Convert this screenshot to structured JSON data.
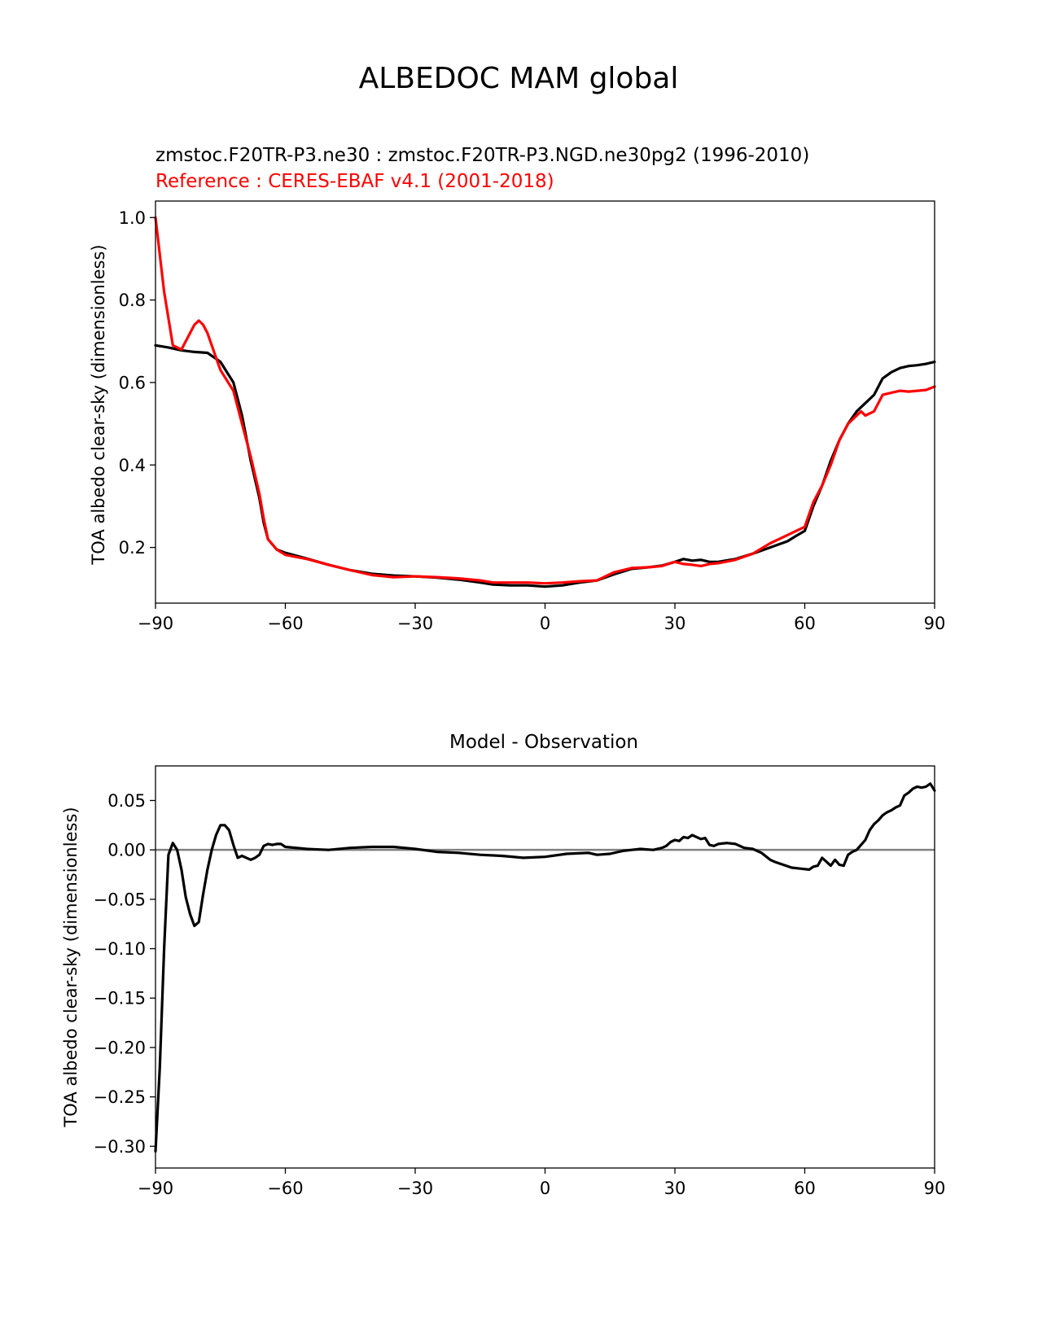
{
  "figure": {
    "suptitle": "ALBEDOC MAM global"
  },
  "colors": {
    "test": "#000000",
    "reference": "#ff0000",
    "zero_line": "#808080"
  },
  "chart_data": [
    {
      "type": "line",
      "title_test": "zmstoc.F20TR-P3.ne30 : zmstoc.F20TR-P3.NGD.ne30pg2 (1996-2010)",
      "title_reference": "Reference : CERES-EBAF v4.1 (2001-2018)",
      "xlabel": "",
      "ylabel": "TOA albedo clear-sky (dimensionless)",
      "xlim": [
        -90,
        90
      ],
      "ylim": [
        0.065,
        1.04
      ],
      "xticks": [
        -90,
        -60,
        -30,
        0,
        30,
        60,
        90
      ],
      "xtick_labels": [
        "−90",
        "−60",
        "−30",
        "0",
        "30",
        "60",
        "90"
      ],
      "yticks": [
        0.2,
        0.4,
        0.6,
        0.8,
        1.0
      ],
      "ytick_labels": [
        "0.2",
        "0.4",
        "0.6",
        "0.8",
        "1.0"
      ],
      "grid": false,
      "series": [
        {
          "color": "#000000",
          "x": [
            -90,
            -87,
            -84,
            -81,
            -78,
            -75,
            -72,
            -70,
            -68,
            -66,
            -65,
            -64,
            -62,
            -60,
            -55,
            -50,
            -45,
            -40,
            -35,
            -30,
            -25,
            -20,
            -15,
            -12,
            -8,
            -4,
            0,
            4,
            8,
            12,
            16,
            20,
            24,
            27,
            30,
            32,
            34,
            36,
            38,
            40,
            44,
            48,
            52,
            56,
            58,
            60,
            62,
            64,
            66,
            68,
            70,
            72,
            74,
            76,
            78,
            80,
            82,
            84,
            86,
            88,
            90
          ],
          "y": [
            0.69,
            0.685,
            0.678,
            0.674,
            0.672,
            0.65,
            0.6,
            0.52,
            0.41,
            0.32,
            0.26,
            0.22,
            0.195,
            0.187,
            0.173,
            0.158,
            0.145,
            0.136,
            0.132,
            0.13,
            0.127,
            0.122,
            0.115,
            0.11,
            0.108,
            0.108,
            0.105,
            0.108,
            0.115,
            0.12,
            0.135,
            0.148,
            0.152,
            0.156,
            0.165,
            0.172,
            0.168,
            0.17,
            0.165,
            0.165,
            0.172,
            0.185,
            0.2,
            0.215,
            0.228,
            0.24,
            0.3,
            0.35,
            0.41,
            0.46,
            0.5,
            0.53,
            0.55,
            0.57,
            0.61,
            0.625,
            0.635,
            0.64,
            0.642,
            0.645,
            0.65
          ]
        },
        {
          "color": "#ff0000",
          "x": [
            -90,
            -88,
            -86,
            -84,
            -82,
            -81,
            -80,
            -79,
            -78,
            -77,
            -76,
            -75,
            -72,
            -70,
            -68,
            -66,
            -65,
            -64,
            -62,
            -60,
            -55,
            -50,
            -45,
            -40,
            -35,
            -30,
            -25,
            -20,
            -15,
            -12,
            -8,
            -4,
            0,
            4,
            8,
            12,
            16,
            20,
            24,
            27,
            30,
            32,
            34,
            36,
            38,
            40,
            44,
            48,
            52,
            56,
            58,
            60,
            62,
            64,
            66,
            68,
            70,
            72,
            73,
            74,
            76,
            78,
            80,
            82,
            84,
            86,
            88,
            90
          ],
          "y": [
            1.0,
            0.82,
            0.69,
            0.68,
            0.72,
            0.74,
            0.75,
            0.74,
            0.72,
            0.69,
            0.66,
            0.63,
            0.58,
            0.5,
            0.42,
            0.33,
            0.27,
            0.22,
            0.195,
            0.182,
            0.172,
            0.158,
            0.145,
            0.133,
            0.128,
            0.13,
            0.128,
            0.125,
            0.12,
            0.115,
            0.115,
            0.115,
            0.113,
            0.115,
            0.118,
            0.12,
            0.14,
            0.15,
            0.152,
            0.155,
            0.165,
            0.16,
            0.158,
            0.155,
            0.16,
            0.162,
            0.17,
            0.185,
            0.21,
            0.23,
            0.24,
            0.25,
            0.31,
            0.35,
            0.4,
            0.46,
            0.5,
            0.52,
            0.53,
            0.52,
            0.53,
            0.57,
            0.575,
            0.58,
            0.578,
            0.58,
            0.582,
            0.59
          ]
        }
      ]
    },
    {
      "type": "line",
      "title": "Model - Observation",
      "xlabel": "",
      "ylabel": "TOA albedo clear-sky (dimensionless)",
      "xlim": [
        -90,
        90
      ],
      "ylim": [
        -0.322,
        0.085
      ],
      "xticks": [
        -90,
        -60,
        -30,
        0,
        30,
        60,
        90
      ],
      "xtick_labels": [
        "−90",
        "−60",
        "−30",
        "0",
        "30",
        "60",
        "90"
      ],
      "yticks": [
        -0.3,
        -0.25,
        -0.2,
        -0.15,
        -0.1,
        -0.05,
        0.0,
        0.05
      ],
      "ytick_labels": [
        "−0.30",
        "−0.25",
        "−0.20",
        "−0.15",
        "−0.10",
        "−0.05",
        "0.00",
        "0.05"
      ],
      "zero_line": 0.0,
      "grid": false,
      "series": [
        {
          "color": "#000000",
          "x": [
            -90,
            -89,
            -88,
            -87,
            -86,
            -85,
            -84,
            -83,
            -82,
            -81,
            -80,
            -79,
            -78,
            -77,
            -76,
            -75,
            -74,
            -73,
            -72,
            -71,
            -70,
            -69,
            -68,
            -67,
            -66,
            -65,
            -64,
            -63,
            -62,
            -61,
            -60,
            -55,
            -50,
            -45,
            -40,
            -35,
            -30,
            -25,
            -20,
            -15,
            -10,
            -5,
            0,
            5,
            10,
            12,
            15,
            18,
            20,
            22,
            25,
            27,
            28,
            29,
            30,
            31,
            32,
            33,
            34,
            35,
            36,
            37,
            38,
            39,
            40,
            42,
            44,
            46,
            48,
            50,
            52,
            53,
            55,
            57,
            59,
            61,
            62,
            63,
            64,
            65,
            66,
            67,
            68,
            69,
            70,
            71,
            72,
            73,
            74,
            75,
            76,
            77,
            78,
            79,
            80,
            81,
            82,
            83,
            84,
            85,
            86,
            87,
            88,
            89,
            90
          ],
          "y": [
            -0.305,
            -0.22,
            -0.1,
            -0.005,
            0.007,
            0.0,
            -0.02,
            -0.048,
            -0.065,
            -0.077,
            -0.073,
            -0.045,
            -0.02,
            0.0,
            0.015,
            0.025,
            0.025,
            0.02,
            0.005,
            -0.008,
            -0.006,
            -0.008,
            -0.01,
            -0.008,
            -0.005,
            0.004,
            0.006,
            0.005,
            0.006,
            0.006,
            0.003,
            0.001,
            0.0,
            0.002,
            0.003,
            0.003,
            0.001,
            -0.002,
            -0.003,
            -0.005,
            -0.006,
            -0.008,
            -0.007,
            -0.004,
            -0.003,
            -0.005,
            -0.004,
            -0.001,
            0.0,
            0.001,
            0.0,
            0.002,
            0.004,
            0.008,
            0.01,
            0.009,
            0.013,
            0.012,
            0.015,
            0.013,
            0.011,
            0.012,
            0.005,
            0.004,
            0.006,
            0.007,
            0.006,
            0.002,
            0.001,
            -0.003,
            -0.01,
            -0.012,
            -0.015,
            -0.018,
            -0.019,
            -0.02,
            -0.017,
            -0.016,
            -0.008,
            -0.012,
            -0.016,
            -0.01,
            -0.015,
            -0.016,
            -0.005,
            -0.002,
            0.0,
            0.005,
            0.01,
            0.02,
            0.026,
            0.03,
            0.035,
            0.038,
            0.04,
            0.043,
            0.045,
            0.055,
            0.058,
            0.062,
            0.064,
            0.063,
            0.064,
            0.067,
            0.06
          ]
        }
      ]
    }
  ]
}
